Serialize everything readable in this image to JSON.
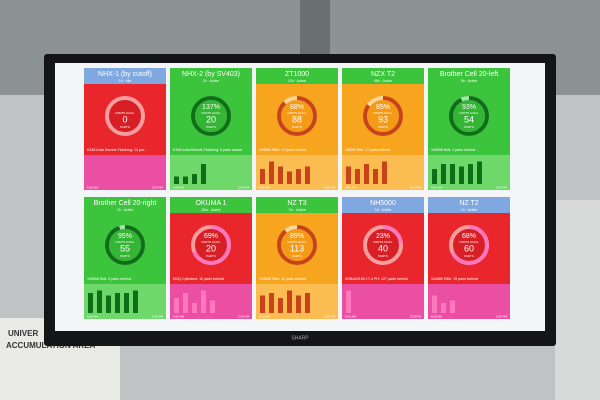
{
  "brand": "SHARP",
  "sign": [
    "UNIVER",
    "ACCUMULATION AREA"
  ],
  "labels": {
    "goal": "PARTS GOAL",
    "unit": "PARTS"
  },
  "tiles": [
    {
      "title": "NHX-1 (by cutoff)",
      "status": "1h · Idle",
      "color": "red",
      "header": "blue",
      "percent": null,
      "value": 0,
      "message": "K348 India Barrels Finishing: 14 par...",
      "start": "6:00 AM",
      "end": "2:00 PM",
      "bars": []
    },
    {
      "title": "NHX-2 (by SV403)",
      "status": "2h · Active",
      "color": "green",
      "header": "green",
      "percent": 137,
      "percent_label": "137%",
      "value": 20,
      "message": "K348 India Barrels Finishing: 5 parts ahead",
      "start": "6:00 AM",
      "end": "2:00 PM",
      "bars": [
        3,
        3,
        4,
        8
      ]
    },
    {
      "title": "ZT1000",
      "status": "12h · Active",
      "color": "orange",
      "header": "green",
      "percent": 88,
      "percent_label": "88%",
      "value": 88,
      "message": "104866 Rifle: 17 parts behind",
      "start": "6:00 AM",
      "end": "2:00 PM",
      "bars": [
        6,
        9,
        7,
        5,
        6,
        7
      ]
    },
    {
      "title": "NZX T2",
      "status": "46h · Active",
      "color": "orange",
      "header": "green",
      "percent": 85,
      "percent_label": "85%",
      "value": 93,
      "message": "18826 Rifle: 17 parts behind",
      "start": "6:00 AM",
      "end": "2:00 PM",
      "bars": [
        7,
        6,
        8,
        6,
        9
      ]
    },
    {
      "title": "Brother Cell 20-left",
      "status": "8h · Active",
      "color": "green",
      "header": "green",
      "percent": 93,
      "percent_label": "93%",
      "value": 54,
      "message": "109658 Bolt: 3 parts behind",
      "start": "6:00 AM",
      "end": "2:00 PM",
      "bars": [
        6,
        8,
        8,
        7,
        8,
        9
      ]
    },
    {
      "title": "Brother Cell 20-right",
      "status": "2h · Active",
      "color": "green",
      "header": "green",
      "percent": 95,
      "percent_label": "95%",
      "value": 55,
      "message": "109658 Bolt: 3 parts behind",
      "start": "6:00 AM",
      "end": "2:00 PM",
      "bars": [
        8,
        9,
        7,
        8,
        8,
        9
      ]
    },
    {
      "title": "OKUMA 1",
      "status": "20m · Active",
      "color": "red",
      "header": "green",
      "percent": 69,
      "percent_label": "69%",
      "value": 20,
      "message": "MVQ Cylinders: 10 parts behind",
      "start": "6:00 AM",
      "end": "2:00 PM",
      "bars": [
        6,
        8,
        4,
        9,
        5
      ]
    },
    {
      "title": "NZ T3",
      "status": "7m · Active",
      "color": "orange",
      "header": "green",
      "percent": 89,
      "percent_label": "89%",
      "value": 113,
      "message": "104866 Rifle: 12 parts behind",
      "start": "6:00 AM",
      "end": "2:00 PM",
      "bars": [
        7,
        8,
        6,
        9,
        7,
        8
      ]
    },
    {
      "title": "NH5000",
      "status": "1h · Active",
      "color": "red",
      "header": "blue",
      "percent": 23,
      "percent_label": "23%",
      "value": 40,
      "message": "KDBA00100 17-4 PH: 127 parts behind",
      "start": "6:00 AM",
      "end": "2:00 PM",
      "bars": [
        9
      ]
    },
    {
      "title": "NZ T2",
      "status": "1h · Active",
      "color": "red",
      "header": "blue",
      "percent": 68,
      "percent_label": "68%",
      "value": 60,
      "message": "104880 Rifle: 19 parts behind",
      "start": "6:00 AM",
      "end": "2:00 PM",
      "bars": [
        7,
        4,
        5
      ]
    }
  ]
}
